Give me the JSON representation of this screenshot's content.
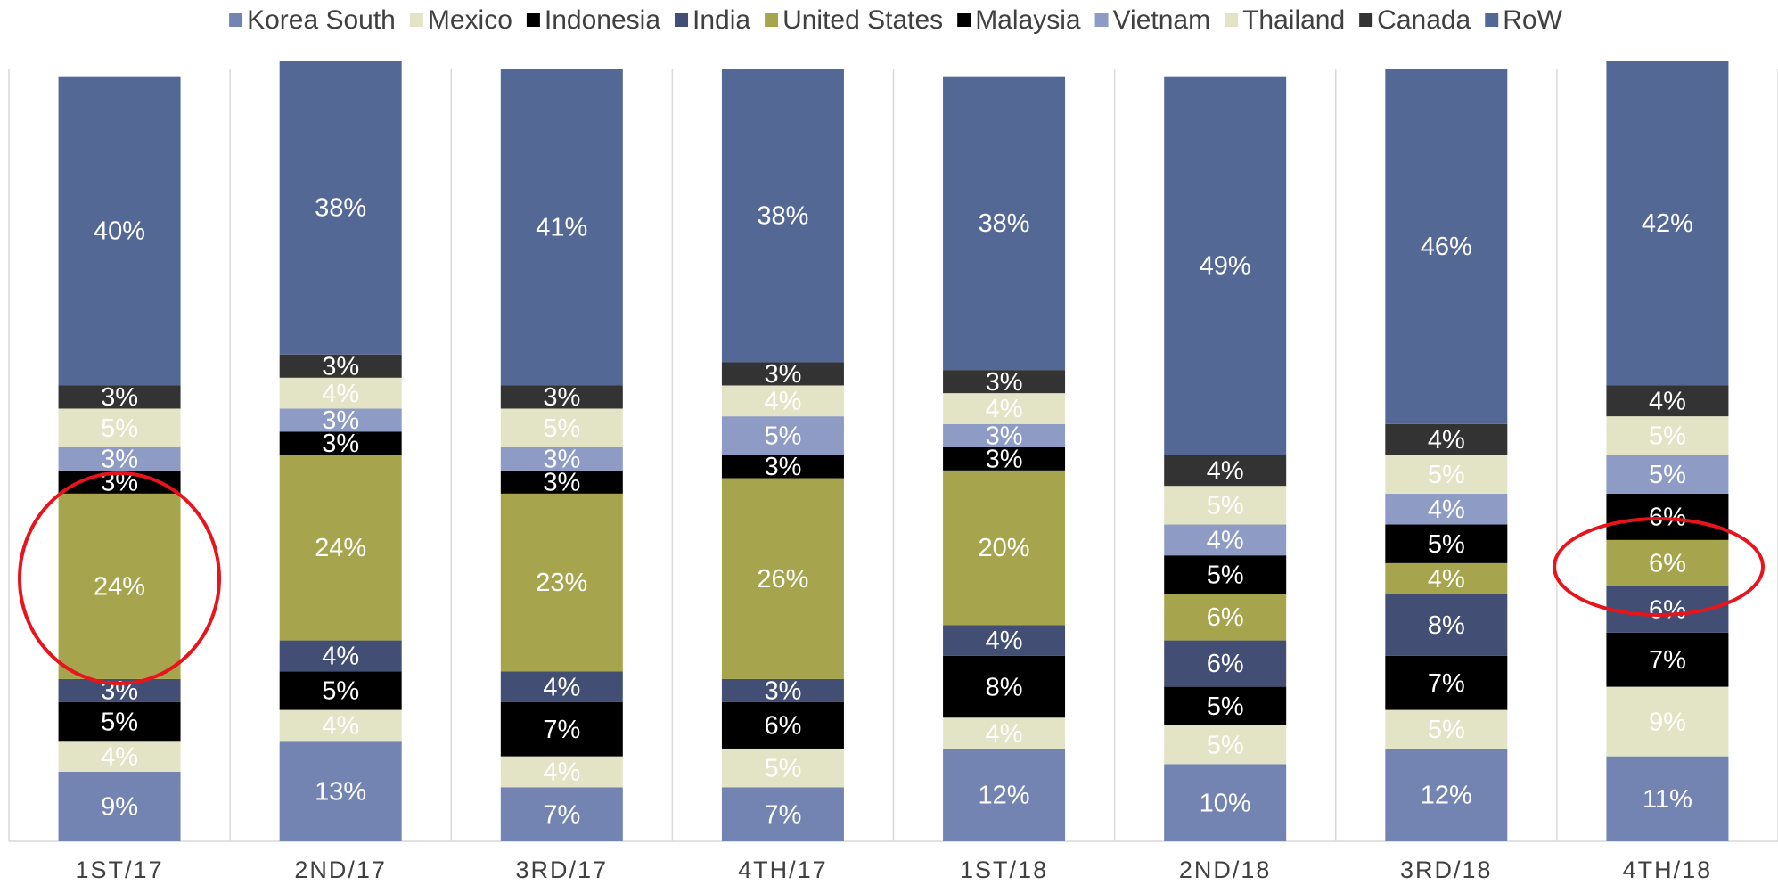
{
  "chart_data": {
    "type": "stacked_bar",
    "categories": [
      "1ST/17",
      "2ND/17",
      "3RD/17",
      "4TH/17",
      "1ST/18",
      "2ND/18",
      "3RD/18",
      "4TH/18"
    ],
    "ylim": [
      0,
      100
    ],
    "series": [
      {
        "name": "Korea South",
        "color": "#7384b3",
        "values": [
          9,
          13,
          7,
          7,
          12,
          10,
          12,
          11
        ],
        "value_labels": [
          "9%",
          "13%",
          "7%",
          "7%",
          "12%",
          "10%",
          "12%",
          "11%"
        ]
      },
      {
        "name": "Mexico",
        "color": "#e3e4c5",
        "values": [
          4,
          4,
          4,
          5,
          4,
          5,
          5,
          9
        ],
        "value_labels": [
          "4%",
          "4%",
          "4%",
          "5%",
          "4%",
          "5%",
          "5%",
          "9%"
        ]
      },
      {
        "name": "Indonesia",
        "color": "#000000",
        "values": [
          5,
          5,
          7,
          6,
          8,
          5,
          7,
          7
        ],
        "value_labels": [
          "5%",
          "5%",
          "7%",
          "6%",
          "8%",
          "5%",
          "7%",
          "7%"
        ]
      },
      {
        "name": "India",
        "color": "#434e74",
        "values": [
          3,
          4,
          4,
          3,
          4,
          6,
          8,
          6
        ],
        "value_labels": [
          "3%",
          "4%",
          "4%",
          "3%",
          "4%",
          "6%",
          "8%",
          "6%"
        ]
      },
      {
        "name": "United States",
        "color": "#a6a54e",
        "values": [
          24,
          24,
          23,
          26,
          20,
          6,
          4,
          6
        ],
        "value_labels": [
          "24%",
          "24%",
          "23%",
          "26%",
          "20%",
          "6%",
          "4%",
          "6%"
        ]
      },
      {
        "name": "Malaysia",
        "color": "#000000",
        "values": [
          3,
          3,
          3,
          3,
          3,
          5,
          5,
          6
        ],
        "value_labels": [
          "3%",
          "3%",
          "3%",
          "3%",
          "3%",
          "5%",
          "5%",
          "6%"
        ]
      },
      {
        "name": "Vietnam",
        "color": "#8e9bc5",
        "values": [
          3,
          3,
          3,
          5,
          3,
          4,
          4,
          5
        ],
        "value_labels": [
          "3%",
          "3%",
          "3%",
          "5%",
          "3%",
          "4%",
          "4%",
          "5%"
        ]
      },
      {
        "name": "Thailand",
        "color": "#e3e4c5",
        "values": [
          5,
          4,
          5,
          4,
          4,
          5,
          5,
          5
        ],
        "value_labels": [
          "5%",
          "4%",
          "5%",
          "4%",
          "4%",
          "5%",
          "5%",
          "5%"
        ]
      },
      {
        "name": "Canada",
        "color": "#333333",
        "values": [
          3,
          3,
          3,
          3,
          3,
          4,
          4,
          4
        ],
        "value_labels": [
          "3%",
          "3%",
          "3%",
          "3%",
          "3%",
          "4%",
          "4%",
          "4%"
        ]
      },
      {
        "name": "RoW",
        "color": "#546896",
        "values": [
          40,
          38,
          41,
          38,
          38,
          49,
          46,
          42
        ],
        "value_labels": [
          "40%",
          "38%",
          "41%",
          "38%",
          "38%",
          "49%",
          "46%",
          "42%"
        ]
      }
    ]
  }
}
